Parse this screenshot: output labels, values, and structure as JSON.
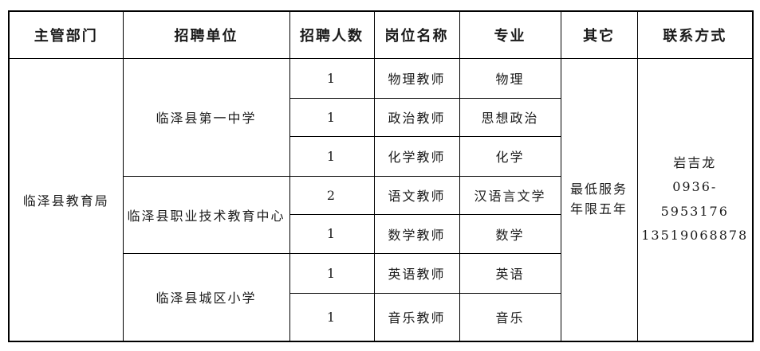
{
  "table": {
    "headers": [
      "主管部门",
      "招聘单位",
      "招聘人数",
      "岗位名称",
      "专业",
      "其它",
      "联系方式"
    ],
    "department": "临泽县教育局",
    "units": [
      "临泽县第一中学",
      "临泽县职业技术教育中心",
      "临泽县城区小学"
    ],
    "rows": [
      {
        "count": "1",
        "position": "物理教师",
        "major": "物理"
      },
      {
        "count": "1",
        "position": "政治教师",
        "major": "思想政治"
      },
      {
        "count": "1",
        "position": "化学教师",
        "major": "化学"
      },
      {
        "count": "2",
        "position": "语文教师",
        "major": "汉语言文学"
      },
      {
        "count": "1",
        "position": "数学教师",
        "major": "数学"
      },
      {
        "count": "1",
        "position": "英语教师",
        "major": "英语"
      },
      {
        "count": "1",
        "position": "音乐教师",
        "major": "音乐"
      }
    ],
    "other_lines": [
      "最低服务",
      "年限五年"
    ],
    "contact_lines": [
      "岩吉龙",
      "0936-5953176",
      "13519068878"
    ],
    "colors": {
      "border": "#000000",
      "text": "#1a1a1a",
      "background": "#ffffff"
    }
  }
}
